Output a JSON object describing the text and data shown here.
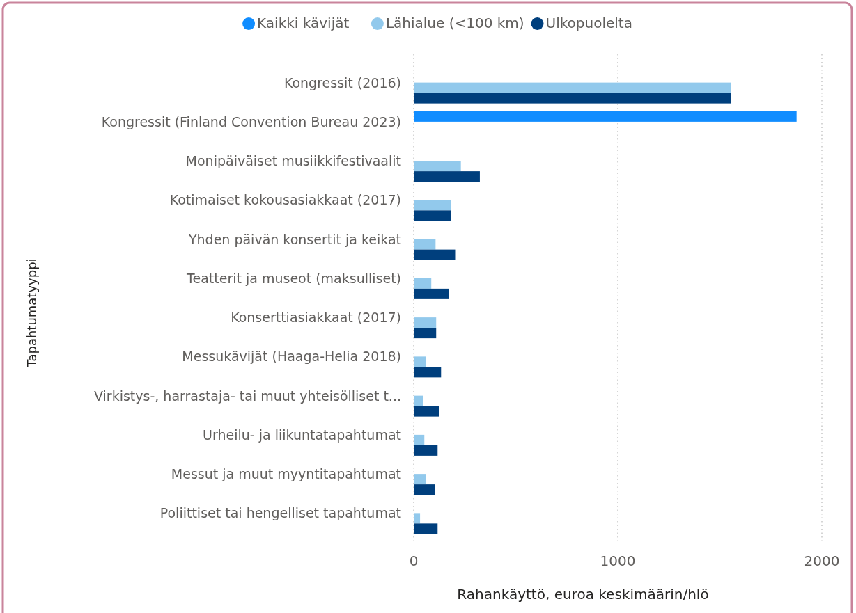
{
  "chart_data": {
    "type": "bar",
    "orientation": "horizontal",
    "xlabel": "Rahankäyttö, euroa keskimäärin/hlö",
    "ylabel": "Tapahtumatyyppi",
    "categories": [
      "Kongressit (2016)",
      "Kongressit (Finland Convention Bureau 2023)",
      "Monipäiväiset musiikkifestivaalit",
      "Kotimaiset kokousasiakkaat (2017)",
      "Yhden päivän konsertit ja keikat",
      "Teatterit ja museot (maksulliset)",
      "Konserttiasiakkaat (2017)",
      "Messukävijät (Haaga-Helia 2018)",
      "Virkistys-, harrastaja- tai muut yhteisölliset t...",
      "Urheilu- ja liikuntatapahtumat",
      "Messut ja muut myyntitapahtumat",
      "Poliittiset tai hengelliset tapahtumat"
    ],
    "series": [
      {
        "name": "Kaikki kävijät",
        "color": "#118dff",
        "values": [
          null,
          1876,
          null,
          null,
          null,
          null,
          null,
          null,
          null,
          null,
          null,
          null
        ]
      },
      {
        "name": "Lähialue (<100 km)",
        "color": "#92c9ec",
        "values": [
          1555,
          null,
          231,
          183,
          107,
          86,
          110,
          59,
          45,
          52,
          59,
          31
        ]
      },
      {
        "name": "Ulkopuolelta",
        "color": "#003f7d",
        "values": [
          1555,
          null,
          324,
          183,
          203,
          172,
          110,
          134,
          124,
          117,
          103,
          117
        ]
      }
    ],
    "xlim": [
      0,
      2000
    ],
    "xticks": [
      0,
      1000,
      2000
    ],
    "grid": "x",
    "legend": "top"
  }
}
